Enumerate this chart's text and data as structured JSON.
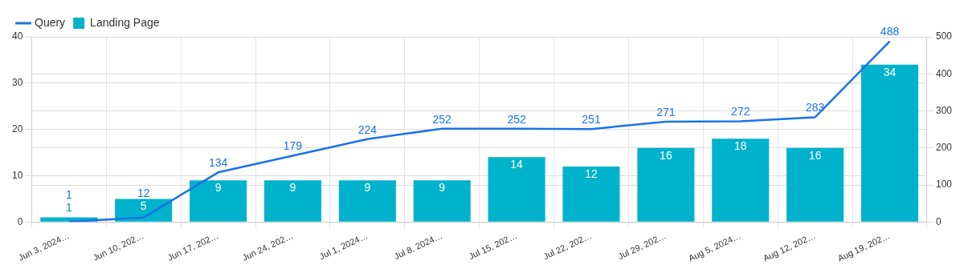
{
  "chart_data": {
    "type": "bar",
    "categories": [
      "Jun 3, 2024…",
      "Jun 10, 202…",
      "Jun 17, 202…",
      "Jun 24, 202…",
      "Jul 1, 2024…",
      "Jul 8, 2024…",
      "Jul 15, 202…",
      "Jul 22, 202…",
      "Jul 29, 202…",
      "Aug 5, 2024…",
      "Aug 12, 202…",
      "Aug 19, 202…"
    ],
    "series": [
      {
        "name": "Query",
        "type": "line",
        "axis": "y2",
        "color": "#1a73e8",
        "values": [
          1,
          12,
          134,
          179,
          224,
          252,
          252,
          251,
          271,
          272,
          283,
          488
        ]
      },
      {
        "name": "Landing Page",
        "color": "#00b2cb",
        "values": [
          1,
          5,
          9,
          9,
          9,
          9,
          14,
          12,
          16,
          18,
          16,
          34
        ]
      }
    ],
    "ylim": [
      0,
      40
    ],
    "yticks": [
      0,
      10,
      20,
      30,
      40
    ],
    "y2lim": [
      0,
      500
    ],
    "y2ticks": [
      0,
      100,
      200,
      300,
      400,
      500
    ],
    "grid": true,
    "legend": "top left",
    "marker": "none",
    "data_labels": true
  }
}
